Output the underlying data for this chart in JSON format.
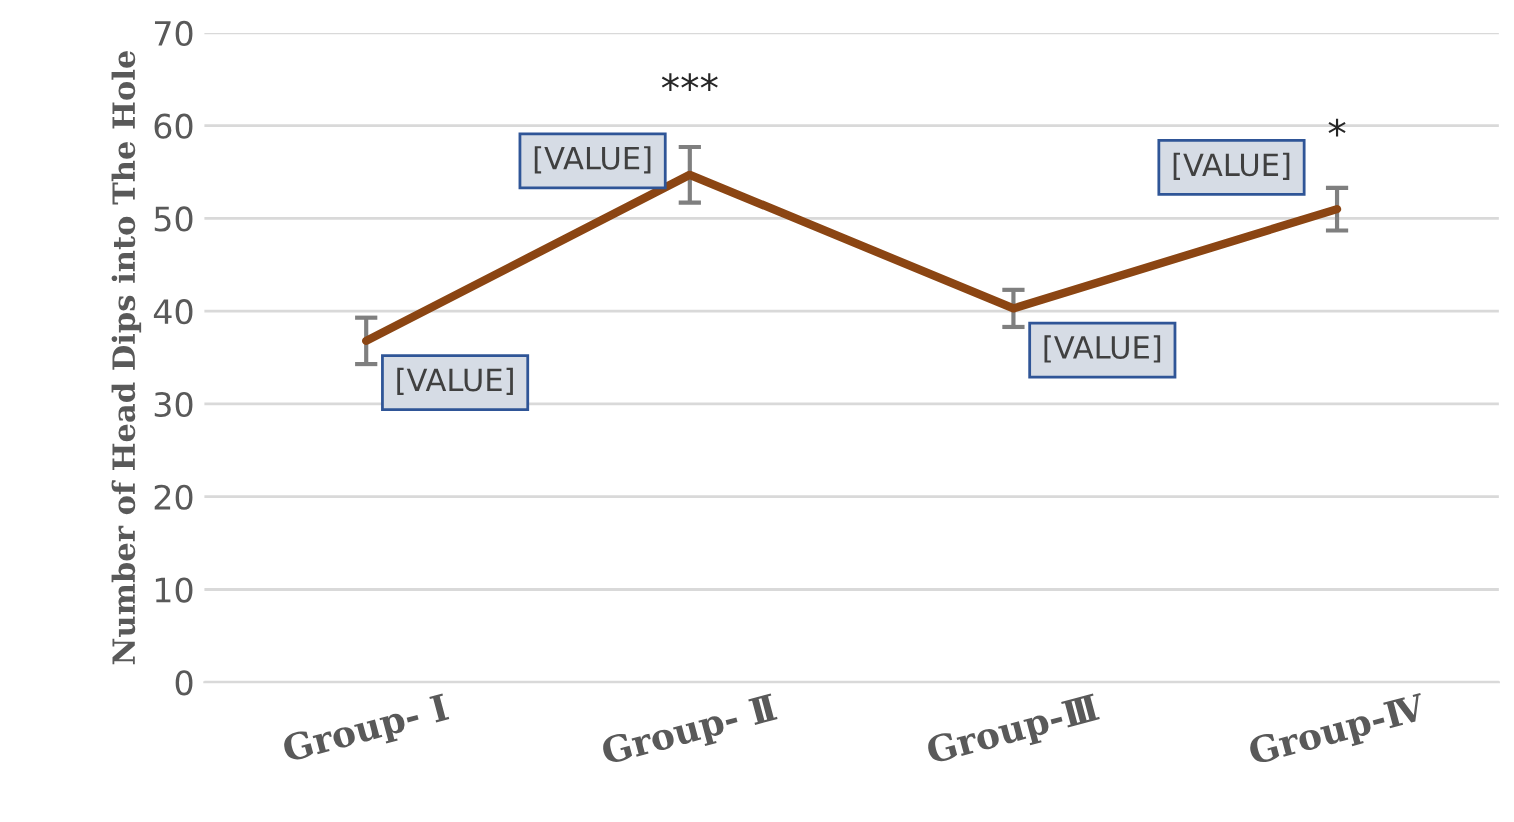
{
  "chart_data": {
    "type": "line",
    "ylabel": "Number of Head Dips into The Hole",
    "categories": [
      "Group- Ⅰ",
      "Group- Ⅱ",
      "Group-Ⅲ",
      "Group-Ⅳ"
    ],
    "series": [
      {
        "color": "#8b4513",
        "values": [
          36.8,
          54.7,
          40.3,
          51.0
        ],
        "errors": [
          2.5,
          3,
          2,
          2.3
        ],
        "value_labels": [
          "[VALUE]",
          "[VALUE]",
          "[VALUE]",
          "[VALUE]"
        ]
      }
    ],
    "ylim": [
      0,
      70
    ],
    "yticks": [
      0,
      10,
      20,
      30,
      40,
      50,
      60,
      70
    ],
    "grid": "y",
    "marker": "none",
    "line_style": "solid",
    "annotations": [
      "***",
      "*"
    ]
  }
}
